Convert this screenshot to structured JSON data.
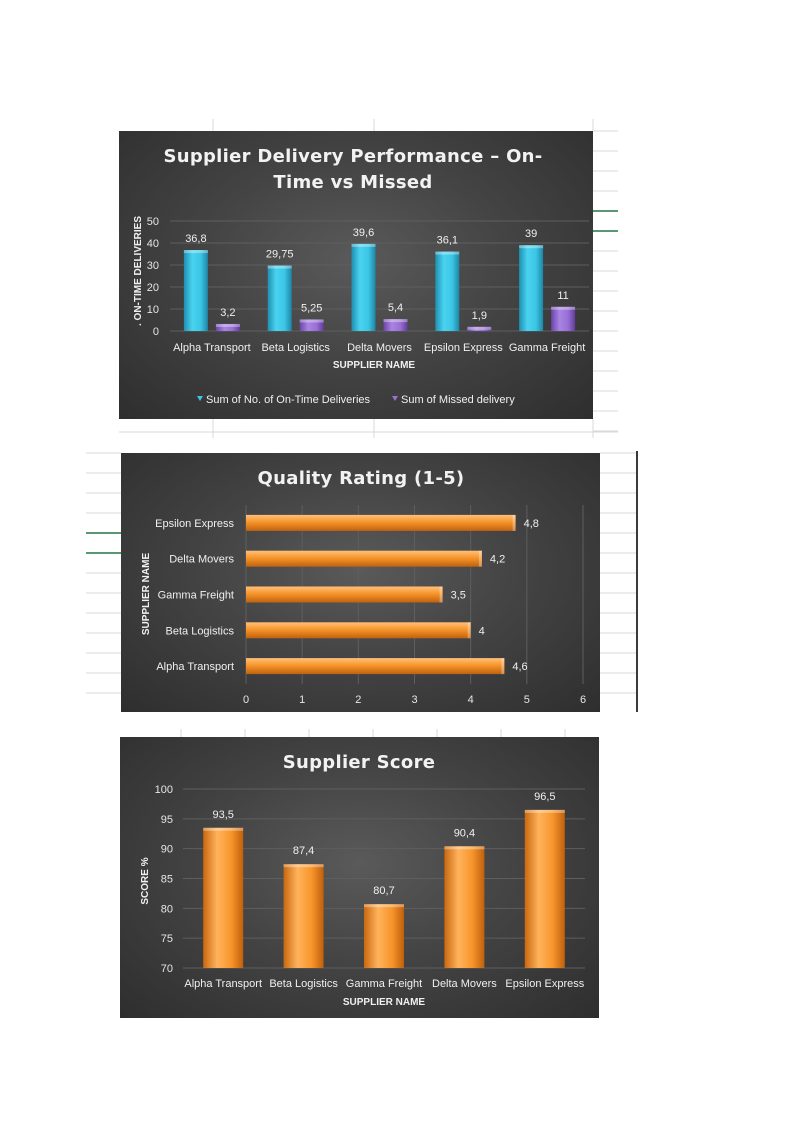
{
  "colors": {
    "teal": "#3cc6e6",
    "purple": "#9a6fd6",
    "orange": "#f7952b",
    "panel_bg": "#444444",
    "grid_line": "#5e5e5e",
    "sheet_line": "#d9d9d9",
    "selection_green": "#217346"
  },
  "chart_data": [
    {
      "type": "bar",
      "title": "Supplier Delivery Performance – On-Time vs Missed",
      "title_lines": [
        "Supplier Delivery Performance – On-",
        "Time vs Missed"
      ],
      "xlabel": "SUPPLIER NAME",
      "ylabel": ". ON-TIME DELIVERIES",
      "categories": [
        "Alpha Transport",
        "Beta Logistics",
        "Delta Movers",
        "Epsilon Express",
        "Gamma Freight"
      ],
      "series": [
        {
          "name": "Sum of No. of On-Time Deliveries",
          "values": [
            36.8,
            29.75,
            39.6,
            36.1,
            39
          ],
          "labels": [
            "36,8",
            "29,75",
            "39,6",
            "36,1",
            "39"
          ],
          "color": "#3cc6e6"
        },
        {
          "name": "Sum of Missed delivery",
          "values": [
            3.2,
            5.25,
            5.4,
            1.9,
            11
          ],
          "labels": [
            "3,2",
            "5,25",
            "5,4",
            "1,9",
            "11"
          ],
          "color": "#9a6fd6"
        }
      ],
      "ylim": [
        0,
        50
      ],
      "yticks": [
        "0",
        "10",
        "20",
        "30",
        "40",
        "50"
      ],
      "grid": true,
      "legend": "bottom"
    },
    {
      "type": "bar",
      "orientation": "horizontal",
      "title": "Quality Rating (1-5)",
      "ylabel": "SUPPLIER NAME",
      "categories": [
        "Epsilon Express",
        "Delta Movers",
        "Gamma Freight",
        "Beta Logistics",
        "Alpha Transport"
      ],
      "values": [
        4.8,
        4.2,
        3.5,
        4,
        4.6
      ],
      "labels": [
        "4,8",
        "4,2",
        "3,5",
        "4",
        "4,6"
      ],
      "xlim": [
        0,
        6
      ],
      "xticks": [
        "0",
        "1",
        "2",
        "3",
        "4",
        "5",
        "6"
      ],
      "grid": true
    },
    {
      "type": "bar",
      "title": "Supplier Score",
      "xlabel": "SUPPLIER NAME",
      "ylabel": "SCORE %",
      "categories": [
        "Alpha Transport",
        "Beta Logistics",
        "Gamma Freight",
        "Delta Movers",
        "Epsilon Express"
      ],
      "values": [
        93.5,
        87.4,
        80.7,
        90.4,
        96.5
      ],
      "labels": [
        "93,5",
        "87,4",
        "80,7",
        "90,4",
        "96,5"
      ],
      "ylim": [
        70,
        100
      ],
      "yticks": [
        "70",
        "75",
        "80",
        "85",
        "90",
        "95",
        "100"
      ],
      "grid": true
    }
  ]
}
